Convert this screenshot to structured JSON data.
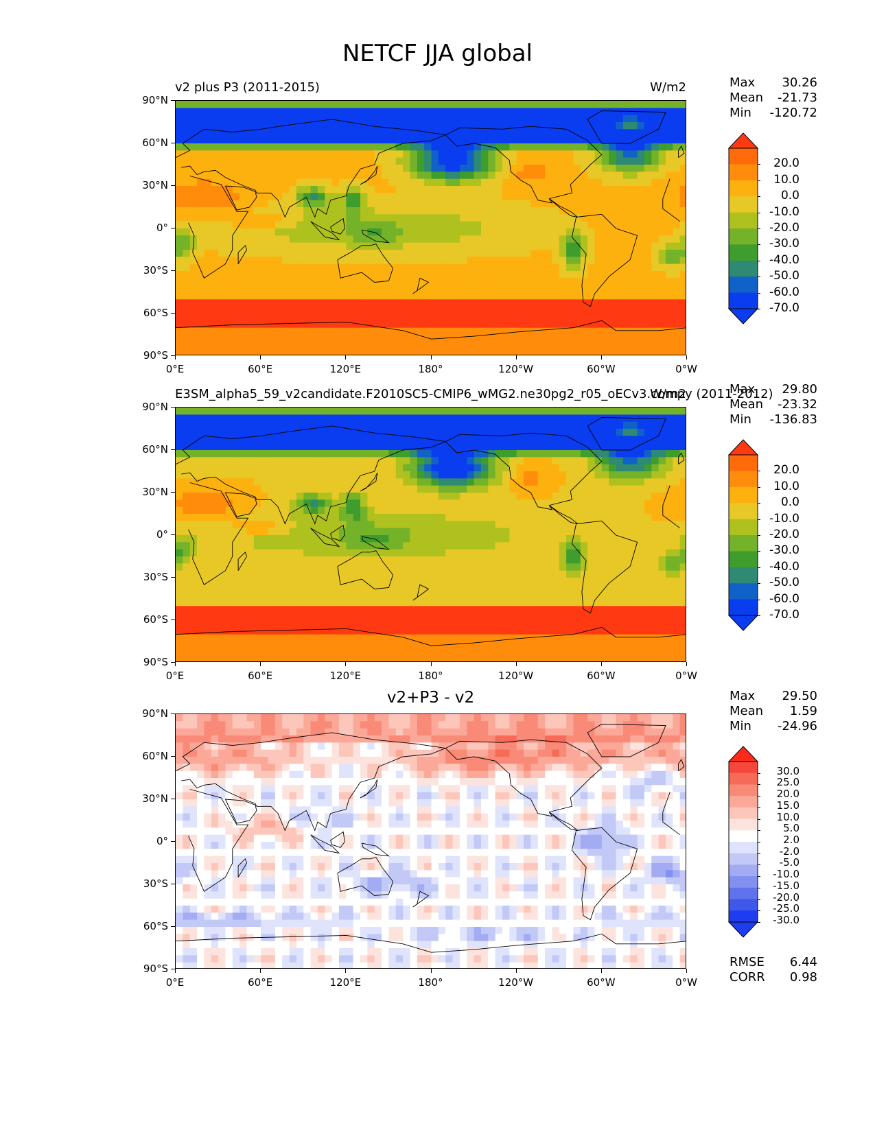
{
  "figure": {
    "title": "NETCF JJA global"
  },
  "axes": {
    "yticks": [
      "90°N",
      "60°N",
      "30°N",
      "0°",
      "30°S",
      "60°S",
      "90°S"
    ],
    "xticks": [
      "0°E",
      "60°E",
      "120°E",
      "180°",
      "120°W",
      "60°W",
      "0°W"
    ]
  },
  "panels": [
    {
      "subtitle": "v2 plus P3 (2011-2015)",
      "units": "W/m2",
      "center_title": "",
      "stats": {
        "max_label": "Max",
        "max": "30.26",
        "mean_label": "Mean",
        "mean": "-21.73",
        "min_label": "Min",
        "min": "-120.72"
      },
      "colorbar": {
        "labels": [
          "20.0",
          "10.0",
          "0.0",
          "-10.0",
          "-20.0",
          "-30.0",
          "-40.0",
          "-50.0",
          "-60.0",
          "-70.0"
        ],
        "colors": [
          "#ff3a12",
          "#ff6a0a",
          "#ff8c0a",
          "#fdb10f",
          "#e8c826",
          "#aec11f",
          "#74b22a",
          "#3f9d2e",
          "#2e8a72",
          "#1062c8",
          "#0a3cf0",
          "#0a3cf0"
        ]
      }
    },
    {
      "subtitle": "E3SM_alpha5_59_v2candidate.F2010SC5-CMIP6_wMG2.ne30pg2_r05_oECv3.compy (2011-2012)",
      "units": "W/m2",
      "center_title": "",
      "stats": {
        "max_label": "Max",
        "max": "29.80",
        "mean_label": "Mean",
        "mean": "-23.32",
        "min_label": "Min",
        "min": "-136.83"
      },
      "colorbar": {
        "labels": [
          "20.0",
          "10.0",
          "0.0",
          "-10.0",
          "-20.0",
          "-30.0",
          "-40.0",
          "-50.0",
          "-60.0",
          "-70.0"
        ],
        "colors": [
          "#ff3a12",
          "#ff6a0a",
          "#ff8c0a",
          "#fdb10f",
          "#e8c826",
          "#aec11f",
          "#74b22a",
          "#3f9d2e",
          "#2e8a72",
          "#1062c8",
          "#0a3cf0",
          "#0a3cf0"
        ]
      }
    },
    {
      "subtitle": "",
      "units": "",
      "center_title": "v2+P3 - v2",
      "stats": {
        "max_label": "Max",
        "max": "29.50",
        "mean_label": "Mean",
        "mean": "1.59",
        "min_label": "Min",
        "min": "-24.96"
      },
      "colorbar": {
        "labels": [
          "30.0",
          "25.0",
          "20.0",
          "15.0",
          "10.0",
          "5.0",
          "2.0",
          "-2.0",
          "-5.0",
          "-10.0",
          "-15.0",
          "-20.0",
          "-25.0",
          "-30.0"
        ],
        "colors": [
          "#ff2a1a",
          "#f5483a",
          "#f76a58",
          "#f98a78",
          "#fba898",
          "#fcc6bb",
          "#fde3dd",
          "#ffffff",
          "#dfe3fb",
          "#c3c9f7",
          "#a3acf3",
          "#8290ef",
          "#6073ec",
          "#3f57ea",
          "#1e3cf0",
          "#1e3cf0"
        ]
      },
      "metrics": {
        "rmse_label": "RMSE",
        "rmse": "6.44",
        "corr_label": "CORR",
        "corr": "0.98"
      }
    }
  ],
  "chart_data": [
    {
      "type": "heatmap",
      "title": "v2 plus P3 (2011-2015)",
      "variable": "NETCF",
      "season": "JJA",
      "units": "W/m2",
      "x_range": [
        "0°E",
        "0°W"
      ],
      "y_range": [
        "90°S",
        "90°N"
      ],
      "contour_levels": [
        -70,
        -60,
        -50,
        -40,
        -30,
        -20,
        -10,
        0,
        10,
        20
      ],
      "extend": "both",
      "summary": {
        "max": 30.26,
        "mean": -21.73,
        "min": -120.72
      }
    },
    {
      "type": "heatmap",
      "title": "E3SM_alpha5_59_v2candidate.F2010SC5-CMIP6_wMG2.ne30pg2_r05_oECv3.compy (2011-2012)",
      "variable": "NETCF",
      "season": "JJA",
      "units": "W/m2",
      "x_range": [
        "0°E",
        "0°W"
      ],
      "y_range": [
        "90°S",
        "90°N"
      ],
      "contour_levels": [
        -70,
        -60,
        -50,
        -40,
        -30,
        -20,
        -10,
        0,
        10,
        20
      ],
      "extend": "both",
      "summary": {
        "max": 29.8,
        "mean": -23.32,
        "min": -136.83
      }
    },
    {
      "type": "heatmap",
      "title": "v2+P3 - v2",
      "variable": "NETCF",
      "season": "JJA",
      "x_range": [
        "0°E",
        "0°W"
      ],
      "y_range": [
        "90°S",
        "90°N"
      ],
      "contour_levels": [
        -30,
        -25,
        -20,
        -15,
        -10,
        -5,
        -2,
        2,
        5,
        10,
        15,
        20,
        25,
        30
      ],
      "extend": "both",
      "summary": {
        "max": 29.5,
        "mean": 1.59,
        "min": -24.96
      },
      "rmse": 6.44,
      "corr": 0.98
    }
  ]
}
